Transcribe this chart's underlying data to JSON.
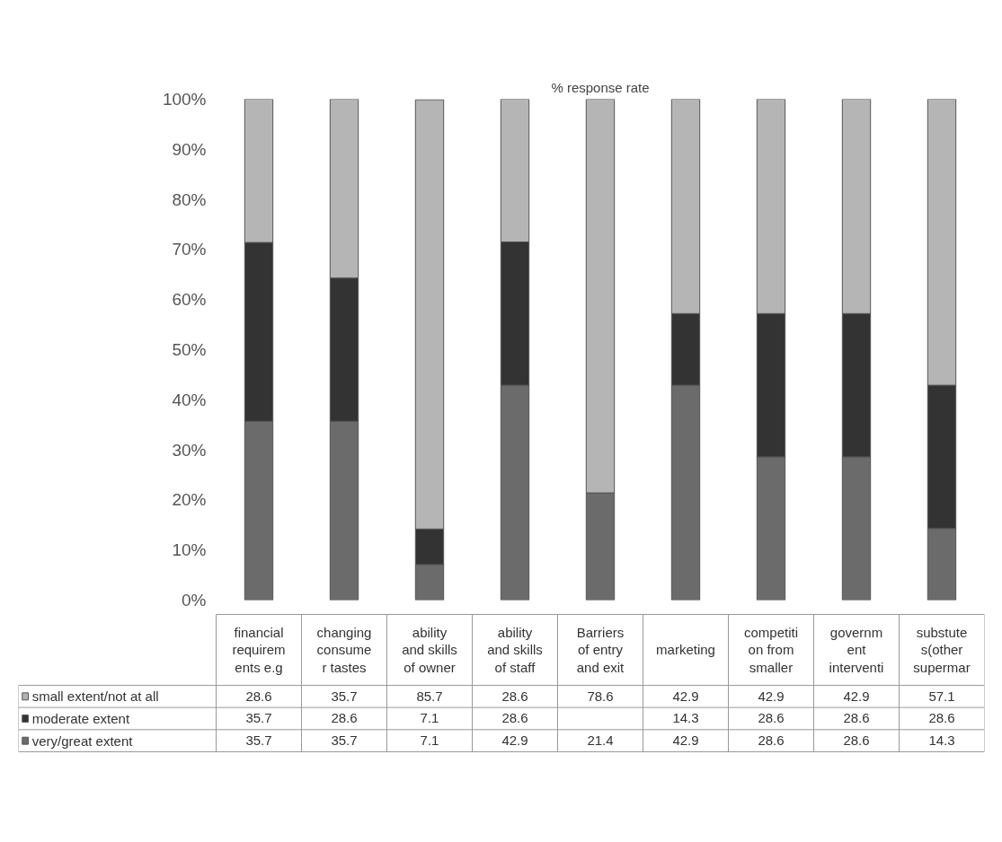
{
  "chart_data": {
    "type": "bar",
    "stacked": true,
    "title": "% response rate",
    "categories": [
      "financial\nrequirem\nents e.g",
      "changing\nconsume\nr tastes",
      "ability\nand skills\nof owner",
      "ability\nand skills\nof staff",
      "Barriers\nof entry\nand exit",
      "marketing",
      "competiti\non from\nsmaller",
      "governm\nent\ninterventi",
      "substute\ns(other\nsupermar"
    ],
    "series": [
      {
        "name": "very/great extent",
        "color": "#6b6b6b",
        "values": [
          35.7,
          35.7,
          7.1,
          42.9,
          21.4,
          42.9,
          28.6,
          28.6,
          14.3
        ]
      },
      {
        "name": "moderate extent",
        "color": "#333333",
        "values": [
          35.7,
          28.6,
          7.1,
          28.6,
          null,
          14.3,
          28.6,
          28.6,
          28.6
        ]
      },
      {
        "name": "small extent/not at all",
        "color": "#b5b5b5",
        "values": [
          28.6,
          35.7,
          85.7,
          28.6,
          78.6,
          42.9,
          42.9,
          42.9,
          57.1
        ]
      }
    ],
    "ylim": [
      0,
      100
    ],
    "yticks": [
      {
        "value": 0,
        "label": "0%"
      },
      {
        "value": 10,
        "label": "10%"
      },
      {
        "value": 20,
        "label": "20%"
      },
      {
        "value": 30,
        "label": "30%"
      },
      {
        "value": 40,
        "label": "40%"
      },
      {
        "value": 50,
        "label": "50%"
      },
      {
        "value": 60,
        "label": "60%"
      },
      {
        "value": 70,
        "label": "70%"
      },
      {
        "value": 80,
        "label": "80%"
      },
      {
        "value": 90,
        "label": "90%"
      },
      {
        "value": 100,
        "label": "100%"
      }
    ],
    "grid": false,
    "legend": "bottom",
    "data_labels": true
  }
}
